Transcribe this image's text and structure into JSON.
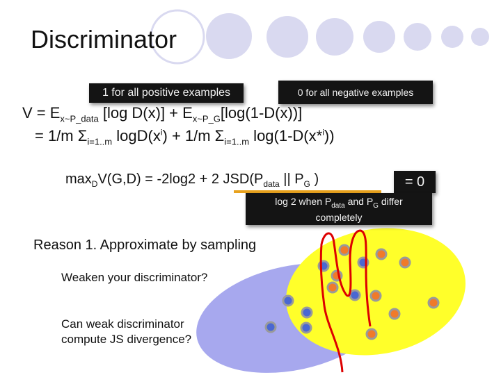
{
  "slide": {
    "title": "Discriminator",
    "positive_label": "1 for all positive examples",
    "negative_label": "0 for all negative examples",
    "eq1": {
      "lhs": "V = E",
      "sub1": "x~P_data",
      "mid": " [log D(x)] + E",
      "sub2": "x~P_G",
      "rhs": "[log(1-D(x))]"
    },
    "eq2": {
      "a": "= 1/m Σ",
      "sub1": "i=1..m",
      "b": " log",
      "c": "D(x",
      "sup1": "i",
      "d": ") + 1/m Σ",
      "sub2": "i=1..m",
      "e": " log(1-D(x*",
      "sup2": "i",
      "f": "))"
    },
    "max_eq": {
      "a": "max",
      "sub1": "D",
      "b": "V(G,D) = -2log2 + 2 JSD(P",
      "sub2": "data",
      "c": " || P",
      "sub3": "G",
      "d": " )"
    },
    "zero_label": "= 0",
    "note": {
      "a": "log 2 when P",
      "sub1": "data",
      "b": " and P",
      "sub2": "G",
      "c": " differ",
      "d": "completely"
    },
    "reason": "Reason 1. Approximate by sampling",
    "weaken": "Weaken your discriminator?",
    "can_weak": "Can weak discriminator compute JS divergence?"
  },
  "colors": {
    "circles": "#d9d9f0",
    "blue_ellipse": "#a7a8ee",
    "yellow_ellipse": "#ffff2a",
    "underline": "#e8a21e",
    "red_curve": "#dd0000",
    "blue_dot": "#4a67d2",
    "orange_dot": "#f07a2a"
  }
}
